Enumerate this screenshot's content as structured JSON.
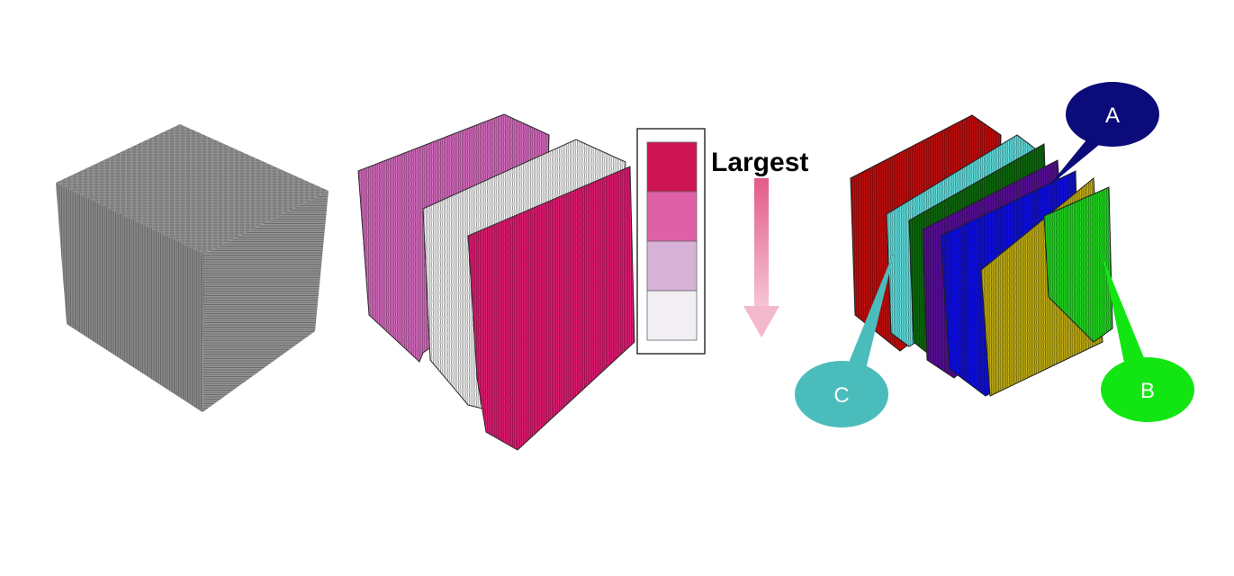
{
  "legend": {
    "label": "Largest",
    "swatches": [
      "#cc1552",
      "#e060a8",
      "#d8b2d6",
      "#f1eef4"
    ],
    "arrow_color": "#e86a92"
  },
  "panels": {
    "grayscale_volume": {
      "colors": {
        "top": "#8b8b8b",
        "left": "#7d7d7d",
        "right": "#959595"
      }
    },
    "pink_segmentation": {
      "slabs": [
        "#e070c8",
        "#ffffff",
        "#ee1c78"
      ]
    },
    "colored_segmentation": {
      "slabs": [
        "#cc0e0e",
        "#66e8e8",
        "#0e6e0e",
        "#5c0fa0",
        "#1010ee",
        "#c8b412",
        "#22e022"
      ]
    }
  },
  "callouts": [
    {
      "id": "A",
      "text": "A",
      "fill": "#0b0b7a"
    },
    {
      "id": "B",
      "text": "B",
      "fill": "#12e612"
    },
    {
      "id": "C",
      "text": "C",
      "fill": "#4bbcbc"
    }
  ]
}
